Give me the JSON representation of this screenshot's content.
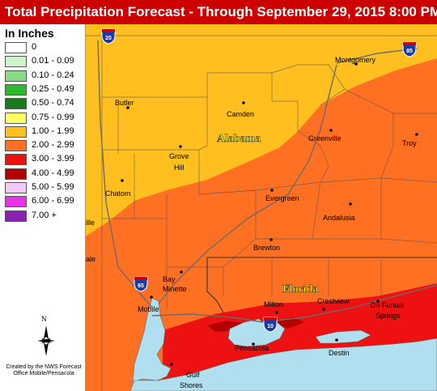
{
  "header": {
    "title": "Total Precipitation Forecast - Through September 29, 2015 8:00 PM"
  },
  "legend": {
    "title": "In Inches",
    "items": [
      {
        "label": "0",
        "color": "#ffffff"
      },
      {
        "label": "0.01 - 0.09",
        "color": "#ccf5cc"
      },
      {
        "label": "0.10 - 0.24",
        "color": "#88d988"
      },
      {
        "label": "0.25 - 0.49",
        "color": "#2db82d"
      },
      {
        "label": "0.50 - 0.74",
        "color": "#1a7a1a"
      },
      {
        "label": "0.75 - 0.99",
        "color": "#ffff66"
      },
      {
        "label": "1.00 - 1.99",
        "color": "#ffbf1f"
      },
      {
        "label": "2.00 - 2.99",
        "color": "#ff7022"
      },
      {
        "label": "3.00 - 3.99",
        "color": "#ee1111"
      },
      {
        "label": "4.00 - 4.99",
        "color": "#b30000"
      },
      {
        "label": "5.00 - 5.99",
        "color": "#f4c8f4"
      },
      {
        "label": "6.00 - 6.99",
        "color": "#e633e6"
      },
      {
        "label": "7.00 +",
        "color": "#8c1fb3"
      }
    ],
    "compass_letter": "N",
    "credit": "Created by the NWS Forecast Office Mobile/Pensacola"
  },
  "map": {
    "state_labels": {
      "alabama": "Alabama",
      "florida": "Florida"
    },
    "cities": {
      "montgomery": "Montgomery",
      "butler": "Butler",
      "camden": "Camden",
      "greenville": "Greenville",
      "troy": "Troy",
      "grove": "Grove",
      "hill": "Hill",
      "chatom": "Chatom",
      "evergreen": "Evergreen",
      "andalusia": "Andalusia",
      "brewton": "Brewton",
      "bay": "Bay",
      "minette": "Minette",
      "mobile": "Mobile",
      "milton": "Milton",
      "crestview": "Crestview",
      "defuniak": "De Funiak",
      "springs": "Springs",
      "pensacola": "Pensacola",
      "destin": "Destin",
      "gulf": "Gulf",
      "shores": "Shores"
    },
    "edge_fragments": {
      "ille": "ille",
      "ale": "ale"
    },
    "interstates": {
      "i20": "20",
      "i85": "85",
      "i65": "65",
      "i10": "10"
    }
  }
}
